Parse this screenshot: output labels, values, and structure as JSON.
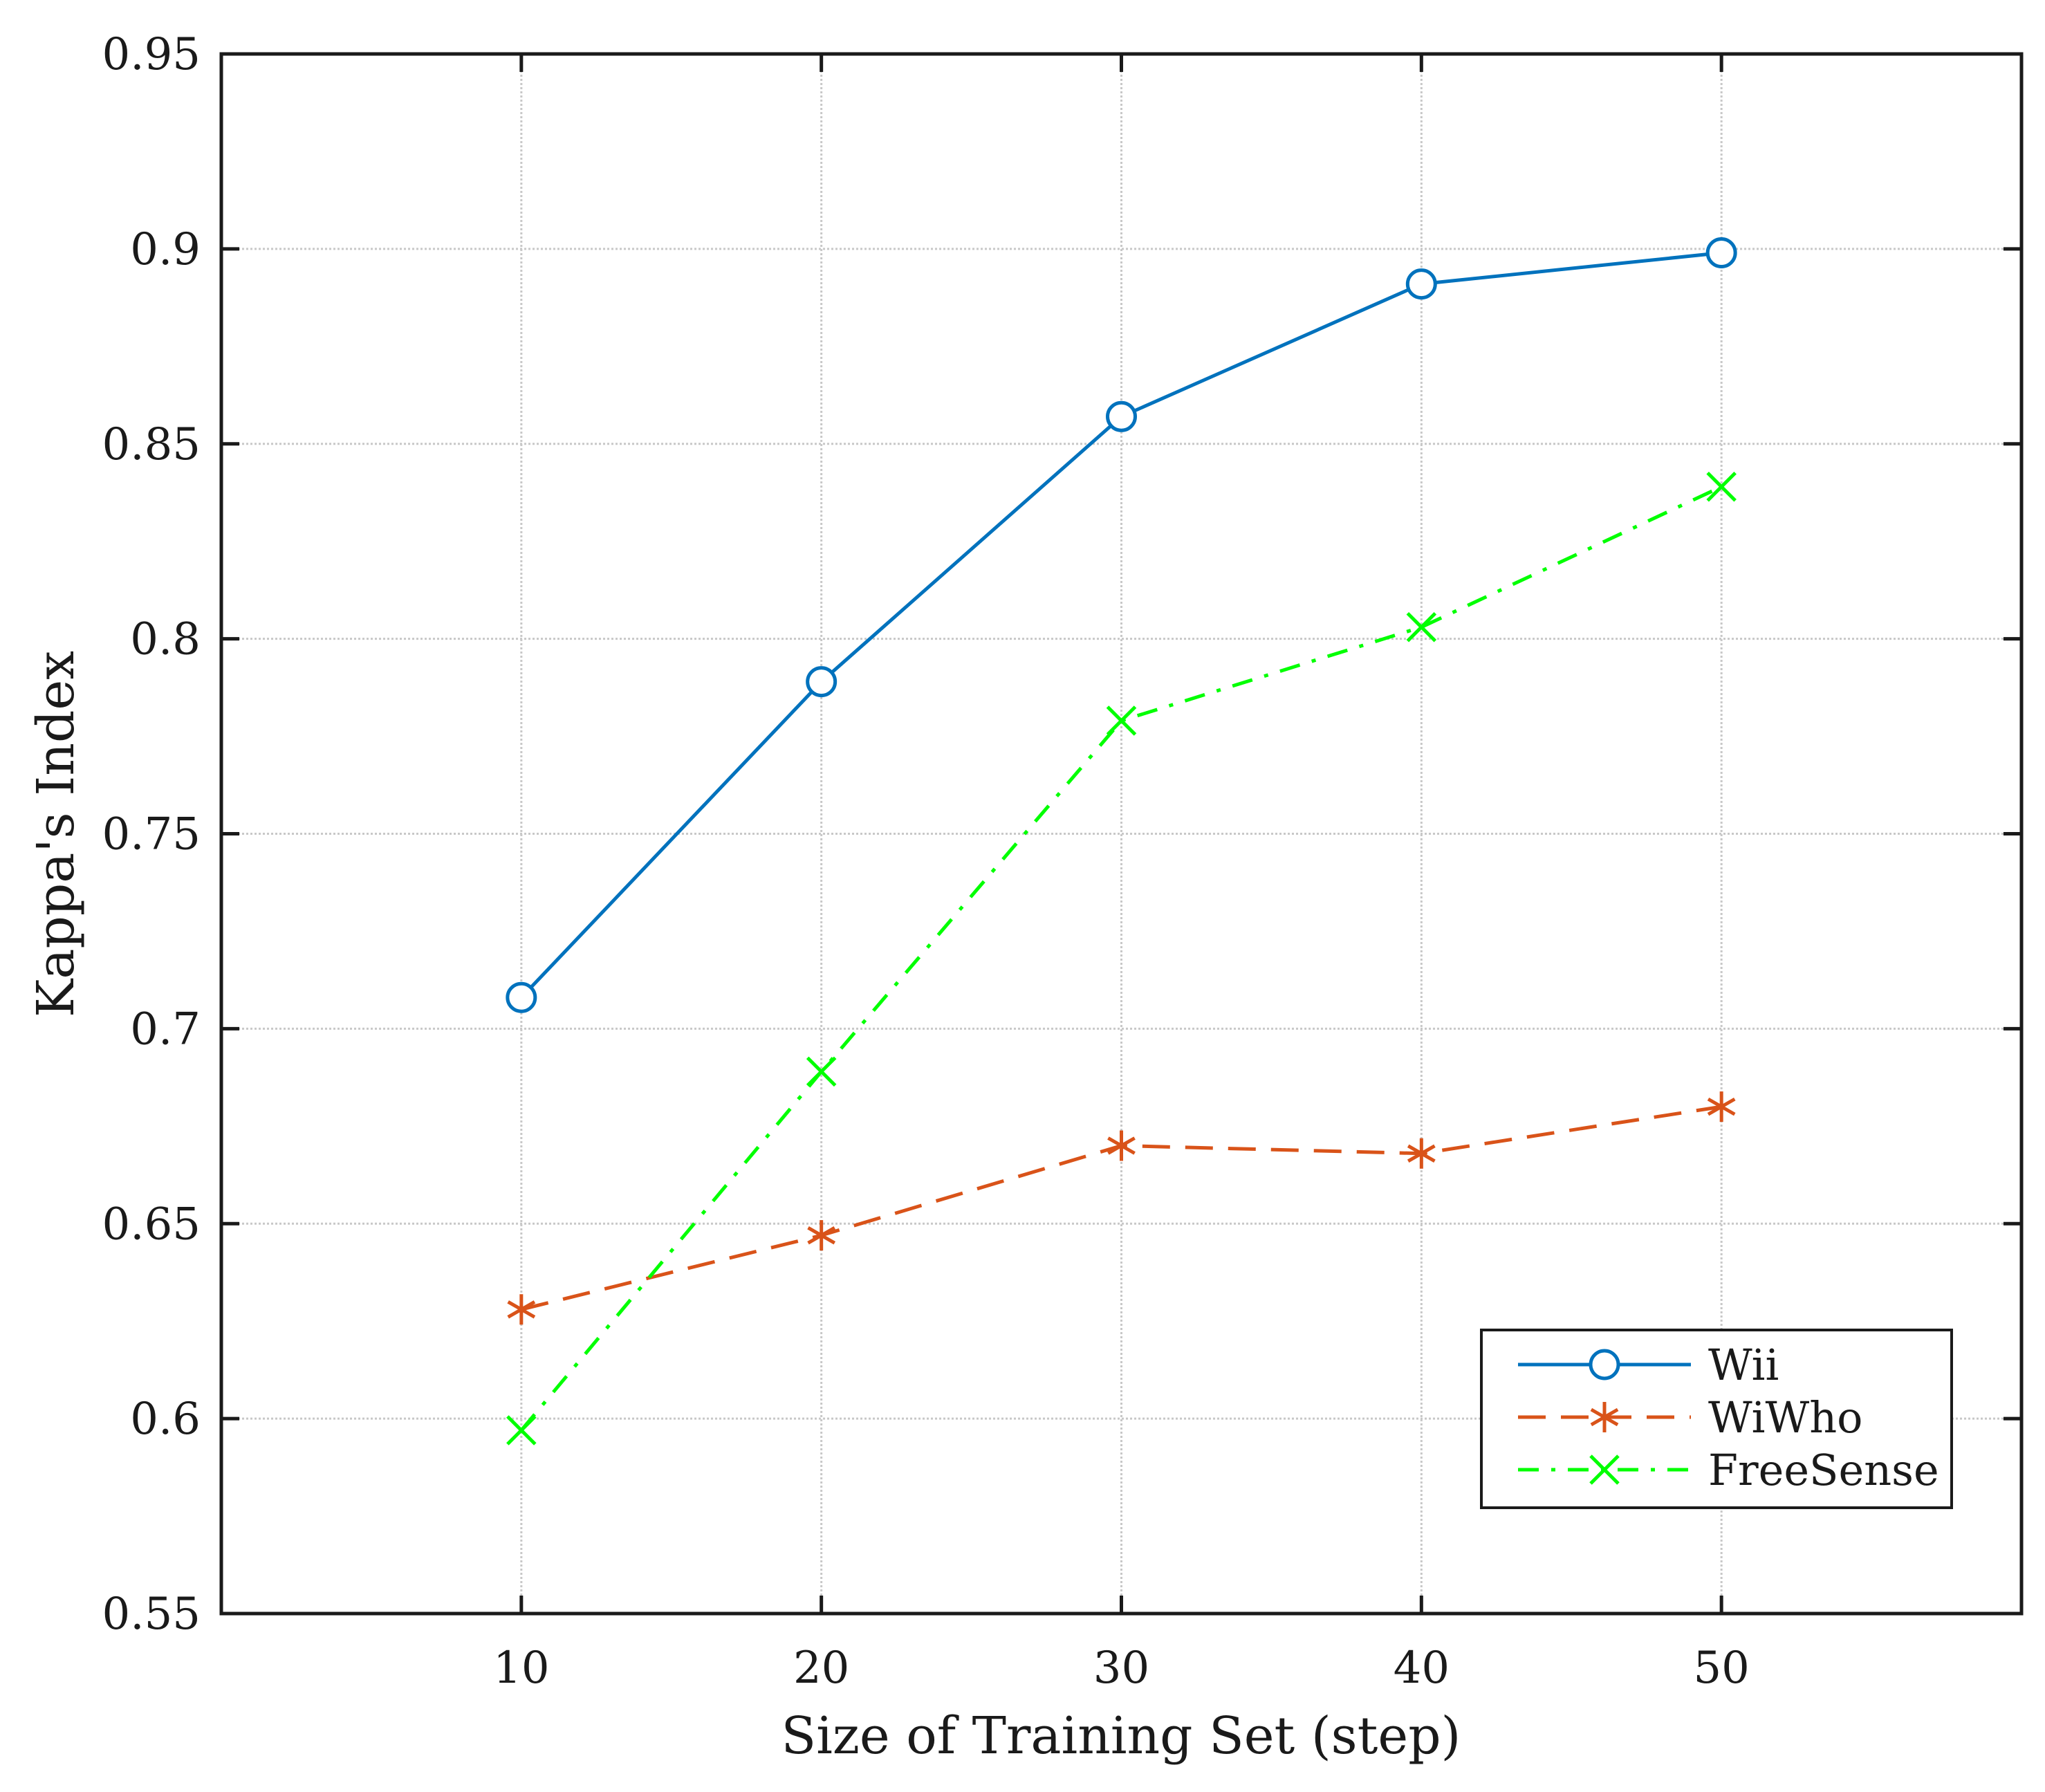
{
  "chart_data": {
    "type": "line",
    "title": "",
    "xlabel": "Size of Training Set (step)",
    "ylabel": "Kappa's Index",
    "x": [
      10,
      20,
      30,
      40,
      50
    ],
    "xlim": [
      0,
      60
    ],
    "ylim": [
      0.55,
      0.95
    ],
    "xticks": [
      10,
      20,
      30,
      40,
      50
    ],
    "xtick_labels": [
      "10",
      "20",
      "30",
      "40",
      "50"
    ],
    "yticks": [
      0.55,
      0.6,
      0.65,
      0.7,
      0.75,
      0.8,
      0.85,
      0.9,
      0.95
    ],
    "ytick_labels": [
      "0.55",
      "0.6",
      "0.65",
      "0.7",
      "0.75",
      "0.8",
      "0.85",
      "0.9",
      "0.95"
    ],
    "grid": true,
    "legend_position": "bottom-right",
    "series": [
      {
        "name": "Wii",
        "values": [
          0.708,
          0.789,
          0.857,
          0.891,
          0.899
        ],
        "color": "#0072BD",
        "marker": "circle",
        "line_style": "solid"
      },
      {
        "name": "WiWho",
        "values": [
          0.628,
          0.647,
          0.67,
          0.668,
          0.68
        ],
        "color": "#D95319",
        "marker": "asterisk",
        "line_style": "dashed"
      },
      {
        "name": "FreeSense",
        "values": [
          0.597,
          0.689,
          0.779,
          0.803,
          0.839
        ],
        "color": "#00FF00",
        "marker": "x",
        "line_style": "dash-dot"
      }
    ]
  }
}
